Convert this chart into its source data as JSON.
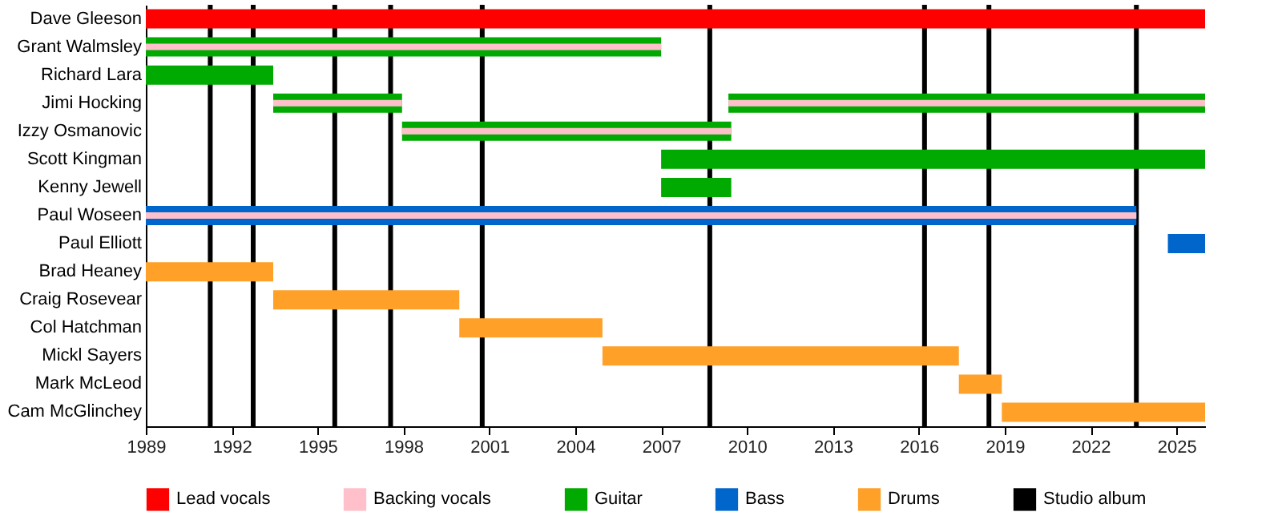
{
  "chart_data": {
    "type": "bar",
    "orientation": "horizontal",
    "categories": [
      "Dave Gleeson",
      "Grant Walmsley",
      "Richard Lara",
      "Jimi Hocking",
      "Izzy Osmanovic",
      "Scott Kingman",
      "Kenny Jewell",
      "Paul Woseen",
      "Paul Elliott",
      "Brad Heaney",
      "Craig Rosevear",
      "Col Hatchman",
      "Mickl Sayers",
      "Mark McLeod",
      "Cam McGlinchey"
    ],
    "series": [
      {
        "name": "Lead vocals",
        "color": "#ff0000",
        "base": [
          1989,
          null,
          null,
          null,
          null,
          null,
          null,
          null,
          null,
          null,
          null,
          null,
          null,
          null,
          null
        ],
        "values": [
          37,
          null,
          null,
          null,
          null,
          null,
          null,
          null,
          null,
          null,
          null,
          null,
          null,
          null,
          null
        ]
      },
      {
        "name": "Backing vocals",
        "color": "#ffc0cb",
        "base": [
          null,
          1989,
          null,
          1993.45,
          1997.95,
          null,
          null,
          1989,
          null,
          null,
          null,
          null,
          null,
          null,
          null
        ],
        "values": [
          null,
          18,
          null,
          4.5,
          11.5,
          null,
          null,
          34.6,
          null,
          null,
          null,
          null,
          null,
          null,
          null
        ]
      },
      {
        "name": "Guitar",
        "color": "#00aa00",
        "base": [
          null,
          1989,
          1989,
          1993.45,
          1997.95,
          2007,
          2007,
          null,
          null,
          null,
          null,
          null,
          null,
          null,
          null
        ],
        "values": [
          null,
          18,
          4.45,
          4.5,
          11.5,
          19,
          2.45,
          null,
          null,
          null,
          null,
          null,
          null,
          null,
          null
        ]
      },
      {
        "name": "Bass",
        "color": "#0066cc",
        "base": [
          null,
          null,
          null,
          null,
          null,
          null,
          null,
          1989,
          2024.7,
          null,
          null,
          null,
          null,
          null,
          null
        ],
        "values": [
          null,
          null,
          null,
          null,
          null,
          null,
          null,
          34.6,
          1.3,
          null,
          null,
          null,
          null,
          null,
          null
        ]
      },
      {
        "name": "Drums",
        "color": "#ffa028",
        "base": [
          null,
          null,
          null,
          null,
          null,
          null,
          null,
          null,
          null,
          1989,
          1993.45,
          1999.95,
          2004.95,
          2017.4,
          2018.9
        ],
        "values": [
          null,
          null,
          null,
          null,
          null,
          null,
          null,
          null,
          null,
          4.45,
          6.5,
          5,
          12.45,
          1.5,
          7.1
        ]
      },
      {
        "color": "#ffc0cb",
        "base": [
          null,
          null,
          null,
          2009.35,
          null,
          null,
          null,
          null,
          null,
          null,
          null,
          null,
          null,
          null,
          null
        ],
        "values": [
          null,
          null,
          null,
          16.65,
          null,
          null,
          null,
          null,
          null,
          null,
          null,
          null,
          null,
          null,
          null
        ]
      },
      {
        "color": "#00aa00",
        "base": [
          null,
          null,
          null,
          2009.35,
          null,
          null,
          null,
          null,
          null,
          null,
          null,
          null,
          null,
          null,
          null
        ],
        "values": [
          null,
          null,
          null,
          16.65,
          null,
          null,
          null,
          null,
          null,
          null,
          null,
          null,
          null,
          null,
          null
        ]
      }
    ],
    "ref_lines": [
      {
        "axis": "x",
        "value": 1991.25,
        "label": "Studio album",
        "color": "#000000"
      },
      {
        "axis": "x",
        "value": 1992.75,
        "color": "#000000"
      },
      {
        "axis": "x",
        "value": 1995.6,
        "color": "#000000"
      },
      {
        "axis": "x",
        "value": 1997.55,
        "color": "#000000"
      },
      {
        "axis": "x",
        "value": 2000.75,
        "color": "#000000"
      },
      {
        "axis": "x",
        "value": 2008.7,
        "color": "#000000"
      },
      {
        "axis": "x",
        "value": 2016.2,
        "color": "#000000"
      },
      {
        "axis": "x",
        "value": 2018.45,
        "color": "#000000"
      },
      {
        "axis": "x",
        "value": 2023.6,
        "color": "#000000"
      }
    ],
    "xlim": [
      1989,
      2026
    ],
    "xticks": [
      1989,
      1992,
      1995,
      1998,
      2001,
      2004,
      2007,
      2010,
      2013,
      2016,
      2019,
      2022,
      2025
    ],
    "grid": false,
    "legend": "bottom"
  }
}
